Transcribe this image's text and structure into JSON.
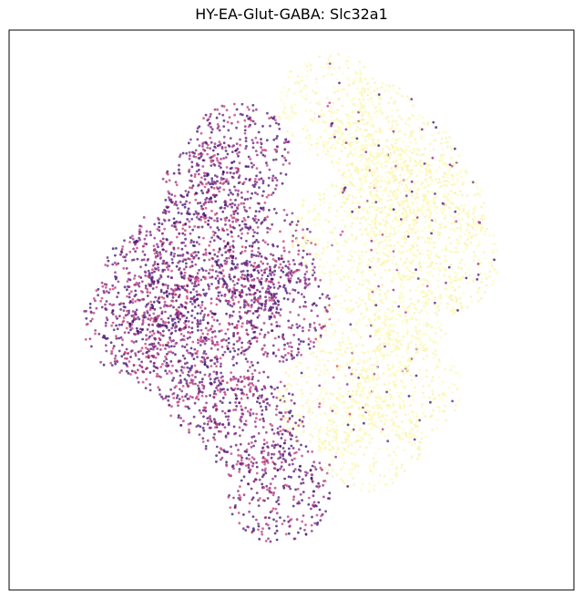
{
  "chart_data": {
    "type": "scatter",
    "title": "HY-EA-Glut-GABA: Slc32a1",
    "xlabel": "",
    "ylabel": "",
    "axes_ticks": "none",
    "grid": false,
    "legend": "none",
    "colormap": "magma",
    "colors": {
      "low": "#3b0f70",
      "mid_low": "#5c1a7a",
      "mid": "#8c2981",
      "mid_high": "#c43c75",
      "high": "#fcfdbf",
      "high_alt": "#fbf3b0"
    },
    "regions": [
      {
        "name": "left-lobe",
        "expression": "low",
        "cells": [
          [
            -0.55,
            0.1
          ],
          [
            -0.4,
            0.25
          ],
          [
            -0.3,
            0.45
          ],
          [
            -0.2,
            0.6
          ],
          [
            -0.45,
            -0.15
          ],
          [
            -0.3,
            -0.3
          ],
          [
            -0.15,
            -0.45
          ],
          [
            -0.05,
            -0.7
          ],
          [
            -0.1,
            0.2
          ],
          [
            -0.05,
            0.0
          ],
          [
            -0.25,
            0.05
          ],
          [
            -0.6,
            -0.05
          ]
        ]
      },
      {
        "name": "right-lobe",
        "expression": "high",
        "cells": [
          [
            0.15,
            0.8
          ],
          [
            0.3,
            0.7
          ],
          [
            0.45,
            0.55
          ],
          [
            0.55,
            0.4
          ],
          [
            0.6,
            0.2
          ],
          [
            0.45,
            0.05
          ],
          [
            0.3,
            -0.1
          ],
          [
            0.45,
            -0.3
          ],
          [
            0.3,
            -0.5
          ],
          [
            0.15,
            -0.35
          ],
          [
            0.2,
            0.3
          ],
          [
            0.35,
            0.45
          ]
        ]
      }
    ]
  }
}
